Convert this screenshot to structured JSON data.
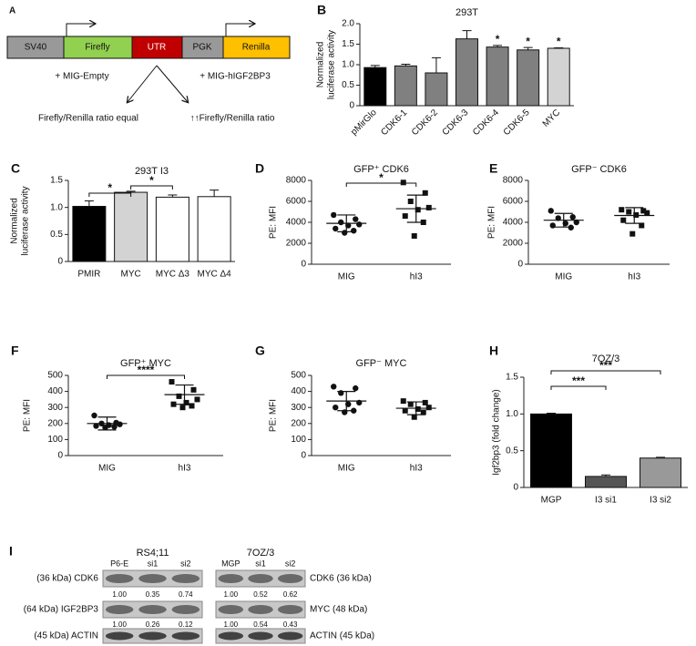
{
  "diagram": {
    "panel": "A",
    "elements": [
      "SV40",
      "Firefly",
      "UTR",
      "PGK",
      "Renilla"
    ],
    "conditions": [
      "+ MIG-Empty",
      "+ MIG-hIGF2BP3"
    ],
    "outcomes": [
      "Firefly/Renilla ratio equal",
      "↑↑Firefly/Renilla ratio"
    ]
  },
  "chart_data": [
    {
      "panel": "B",
      "type": "bar",
      "title": "293T",
      "ylabel": [
        "Normalized",
        "luciferase activity"
      ],
      "categories": [
        "pMirGlo",
        "CDK6-1",
        "CDK6-2",
        "CDK6-3",
        "CDK6-4",
        "CDK6-5",
        "MYC"
      ],
      "values": [
        0.93,
        0.97,
        0.8,
        1.63,
        1.43,
        1.36,
        1.4
      ],
      "errors": [
        0.05,
        0.04,
        0.37,
        0.2,
        0.04,
        0.06,
        0.01
      ],
      "colors": [
        "#000000",
        "#808080",
        "#808080",
        "#808080",
        "#808080",
        "#808080",
        "#d3d3d3"
      ],
      "significance": [
        null,
        null,
        null,
        null,
        "*",
        "*",
        "*"
      ],
      "ylim": [
        0,
        2
      ],
      "yticks": [
        0,
        0.5,
        {
          "value": 1,
          "label": "1.0"
        },
        1.5,
        {
          "value": 2,
          "label": "2.0"
        }
      ]
    },
    {
      "panel": "C",
      "type": "bar",
      "title": "293T I3",
      "ylabel": [
        "Normalized",
        "luciferase activity"
      ],
      "categories": [
        "PMIR",
        "MYC",
        "MYC Δ3",
        "MYC Δ4"
      ],
      "values": [
        1.02,
        1.28,
        1.19,
        1.2
      ],
      "errors": [
        0.1,
        0.02,
        0.04,
        0.12
      ],
      "colors": [
        "#000000",
        "#d3d3d3",
        "#ffffff",
        "#ffffff"
      ],
      "brackets": [
        "*",
        "*"
      ],
      "ylim": [
        0,
        1.5
      ],
      "yticks": [
        0,
        0.5,
        {
          "value": 1,
          "label": "1.0"
        },
        1.5
      ]
    },
    {
      "panel": "D",
      "type": "dot",
      "title": "GFP⁺ CDK6",
      "ylabel": [
        "PE: MFI"
      ],
      "categories": [
        "MIG",
        "hI3"
      ],
      "values": [
        [
          4700,
          4300,
          4000,
          3800,
          3700,
          3400,
          3200,
          3000
        ],
        [
          7800,
          6800,
          6000,
          5400,
          5200,
          4600,
          4000,
          2700
        ]
      ],
      "mean": [
        3900,
        5300
      ],
      "sd": [
        800,
        1300
      ],
      "brackets": [
        "*"
      ],
      "ylim": [
        0,
        8000
      ],
      "yticks": [
        0,
        2000,
        4000,
        6000,
        8000
      ]
    },
    {
      "panel": "E",
      "type": "dot",
      "title": "GFP⁻ CDK6",
      "ylabel": [
        "PE: MFI"
      ],
      "categories": [
        "MIG",
        "hI3"
      ],
      "values": [
        [
          5100,
          4500,
          4400,
          4000,
          3900,
          3700,
          3500
        ],
        [
          5200,
          5100,
          5000,
          4900,
          4700,
          4200,
          3700,
          2900
        ]
      ],
      "mean": [
        4200,
        4650
      ],
      "sd": [
        650,
        750
      ],
      "ylim": [
        0,
        8000
      ],
      "yticks": [
        0,
        2000,
        4000,
        6000,
        8000
      ]
    },
    {
      "panel": "F",
      "type": "dot",
      "title": "GFP⁺ MYC",
      "ylabel": [
        "PE: MFI"
      ],
      "categories": [
        "MIG",
        "hI3"
      ],
      "values": [
        [
          250,
          205,
          200,
          195,
          190,
          185,
          180,
          175
        ],
        [
          460,
          410,
          370,
          350,
          330,
          320,
          310,
          300
        ]
      ],
      "mean": [
        200,
        380
      ],
      "sd": [
        40,
        60
      ],
      "brackets": [
        "****"
      ],
      "ylim": [
        0,
        500
      ],
      "yticks": [
        0,
        100,
        200,
        300,
        400,
        500
      ]
    },
    {
      "panel": "G",
      "type": "dot",
      "title": "GFP⁻ MYC",
      "ylabel": [
        "PE: MFI"
      ],
      "categories": [
        "MIG",
        "hI3"
      ],
      "values": [
        [
          430,
          420,
          390,
          330,
          320,
          300,
          280,
          270
        ],
        [
          340,
          330,
          320,
          300,
          290,
          280,
          270,
          240
        ]
      ],
      "mean": [
        340,
        295
      ],
      "sd": [
        60,
        40
      ],
      "ylim": [
        0,
        500
      ],
      "yticks": [
        0,
        100,
        200,
        300,
        400,
        500
      ]
    },
    {
      "panel": "H",
      "type": "bar",
      "title": "7OZ/3",
      "ylabel": [
        "Igf2bp3 (fold change)"
      ],
      "categories": [
        "MGP",
        "I3 si1",
        "I3 si2"
      ],
      "values": [
        1.0,
        0.15,
        0.4
      ],
      "errors": [
        0.01,
        0.02,
        0.01
      ],
      "colors": [
        "#000000",
        "#555555",
        "#999999"
      ],
      "brackets": [
        "***",
        "***"
      ],
      "ylim": [
        0,
        1.5
      ],
      "yticks": [
        0,
        0.5,
        {
          "value": 1,
          "label": "1.0"
        },
        1.5
      ]
    }
  ],
  "blot": {
    "panel": "I",
    "groups": [
      {
        "name": "RS4;11",
        "lanes": [
          "P6-E",
          "si1",
          "si2"
        ],
        "rows": [
          {
            "label": "(36 kDa) CDK6",
            "quant": [
              "1.00",
              "0.35",
              "0.74"
            ]
          },
          {
            "label": "(64 kDa) IGF2BP3",
            "quant": [
              "1.00",
              "0.26",
              "0.12"
            ]
          },
          {
            "label": "(45 kDa) ACTIN"
          }
        ]
      },
      {
        "name": "7OZ/3",
        "lanes": [
          "MGP",
          "si1",
          "si2"
        ],
        "rows": [
          {
            "label": "CDK6 (36 kDa)",
            "quant": [
              "1.00",
              "0.52",
              "0.62"
            ]
          },
          {
            "label": "MYC (48 kDa)",
            "quant": [
              "1.00",
              "0.54",
              "0.43"
            ]
          },
          {
            "label": "ACTIN (45 kDa)"
          }
        ]
      }
    ]
  }
}
